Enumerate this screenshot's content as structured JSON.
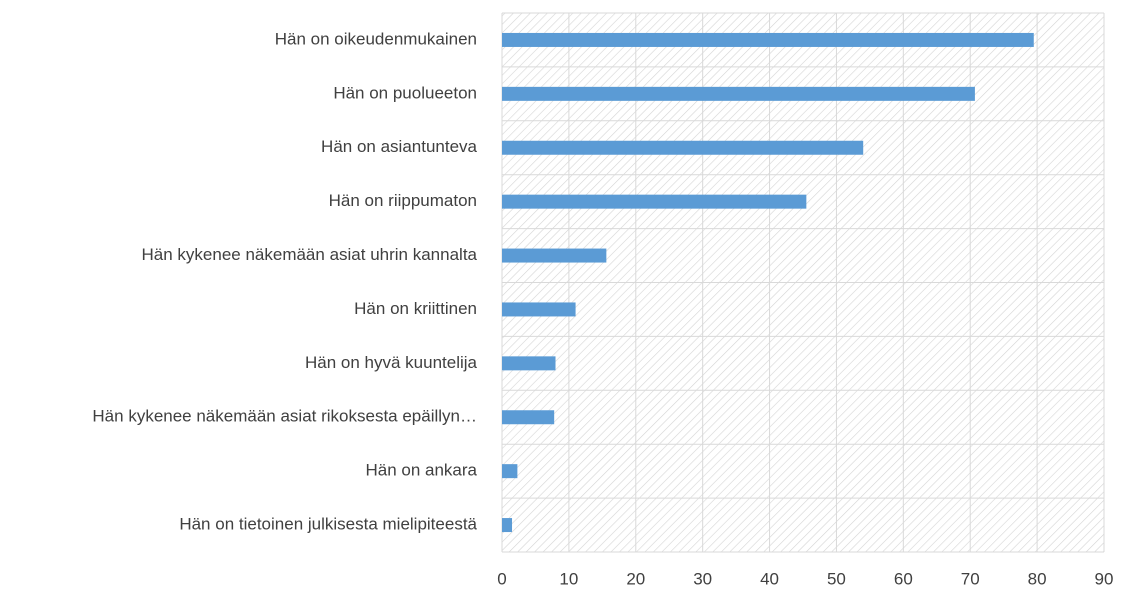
{
  "chart_data": {
    "type": "bar",
    "orientation": "horizontal",
    "categories": [
      "Hän on oikeudenmukainen",
      "Hän on puolueeton",
      "Hän on asiantunteva",
      "Hän on riippumaton",
      "Hän kykenee näkemään asiat uhrin kannalta",
      "Hän on kriittinen",
      "Hän on hyvä kuuntelija",
      "Hän kykenee näkemään asiat rikoksesta epäillyn…",
      "Hän on ankara",
      "Hän on tietoinen julkisesta mielipiteestä"
    ],
    "values": [
      79.5,
      70.7,
      54,
      45.5,
      15.6,
      11,
      8,
      7.8,
      2.3,
      1.5
    ],
    "color": "#5b9bd5",
    "xlim": [
      0,
      90
    ],
    "xticks": [
      0,
      10,
      20,
      30,
      40,
      50,
      60,
      70,
      80,
      90
    ],
    "grid": true
  }
}
